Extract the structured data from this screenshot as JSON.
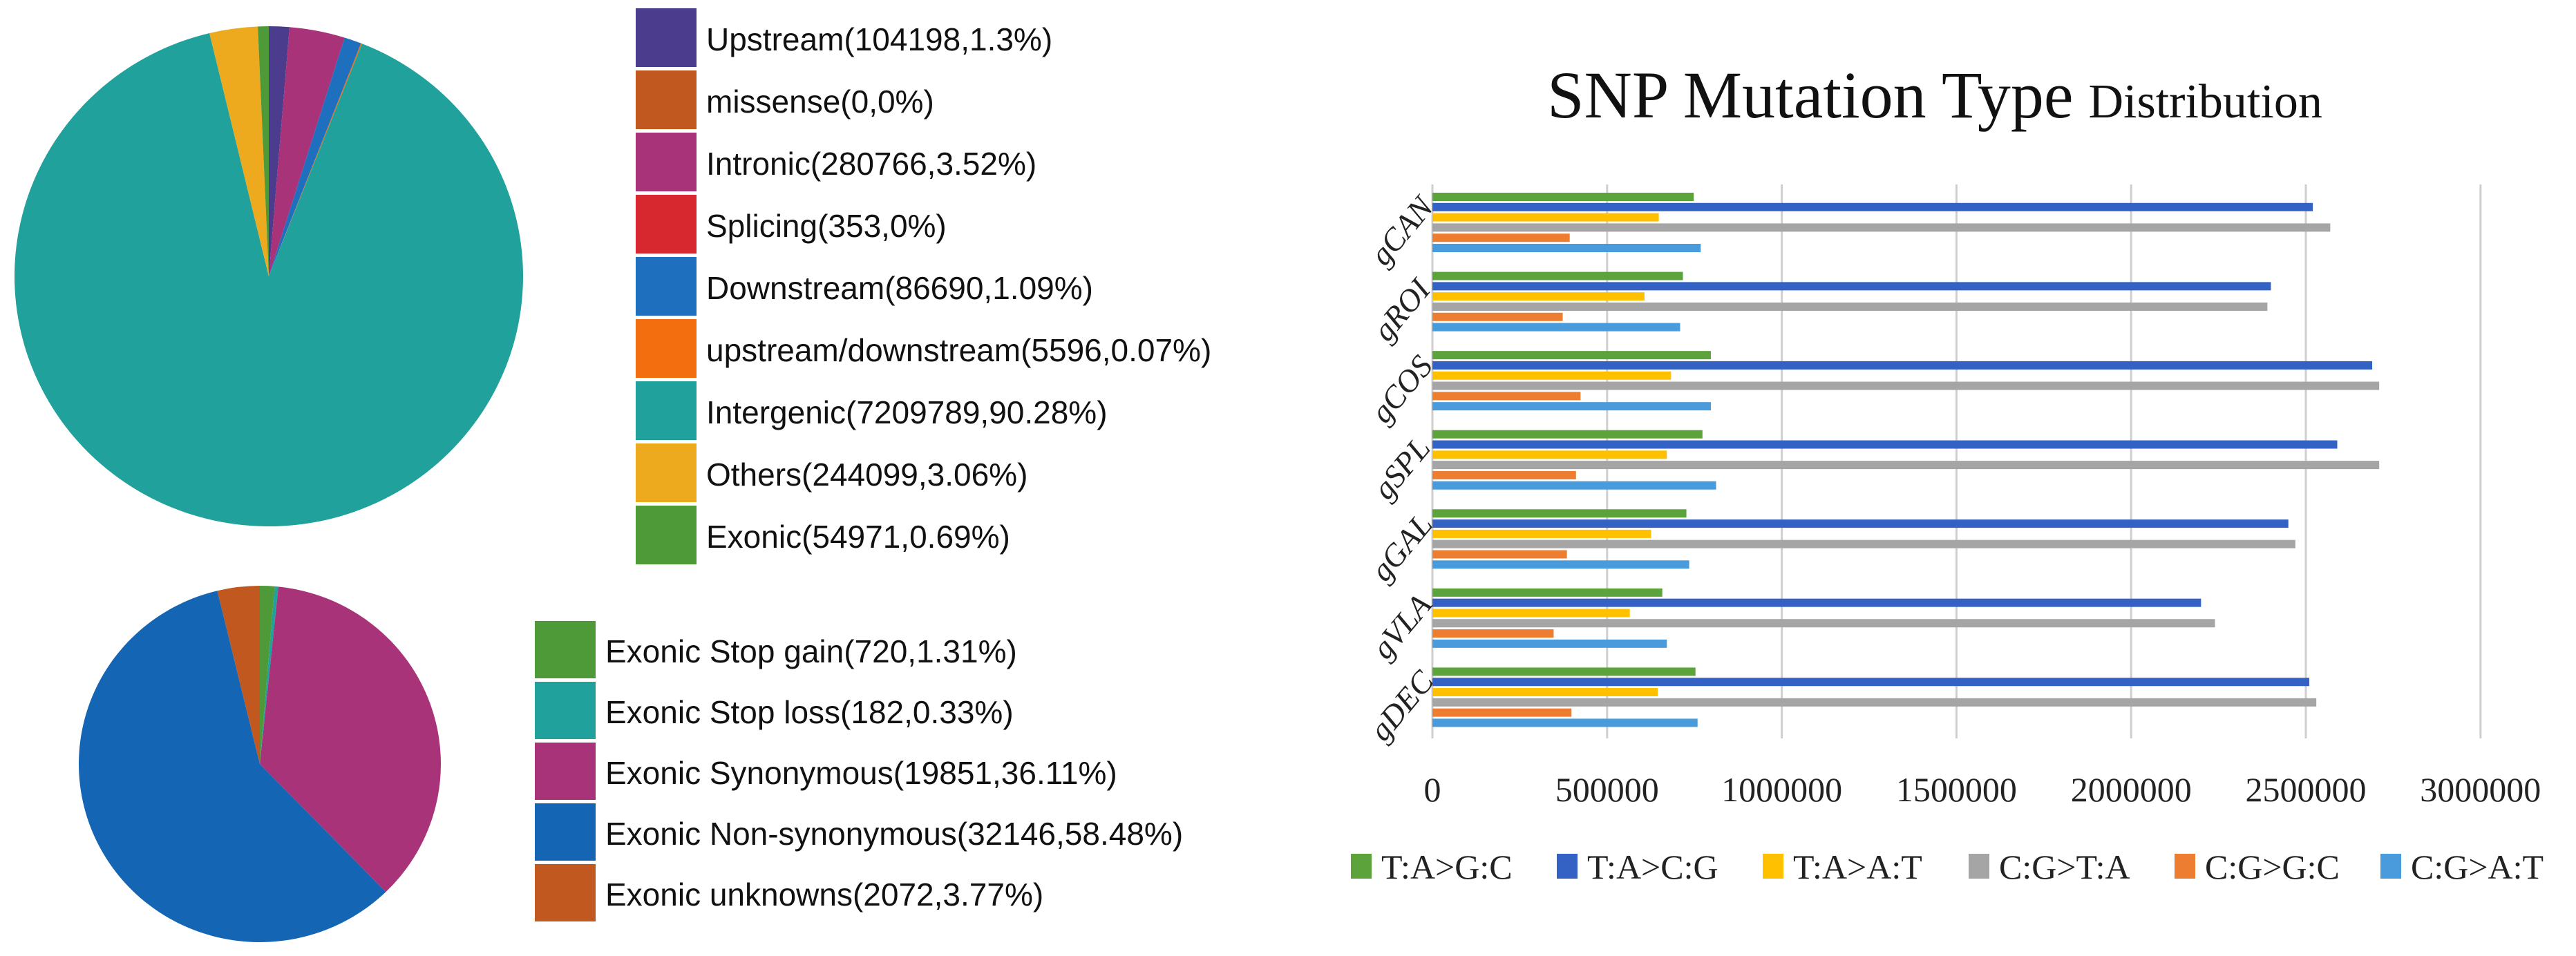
{
  "chart_data": [
    {
      "type": "pie",
      "title": "",
      "legend_position": "right",
      "slices": [
        {
          "label": "Upstream(104198,1.3%)",
          "name": "Upstream",
          "count": 104198,
          "percent": 1.3,
          "color": "#4B3C8E"
        },
        {
          "label": "missense(0,0%)",
          "name": "missense",
          "count": 0,
          "percent": 0,
          "color": "#C0581F"
        },
        {
          "label": "Intronic(280766,3.52%)",
          "name": "Intronic",
          "count": 280766,
          "percent": 3.52,
          "color": "#A83379"
        },
        {
          "label": "Splicing(353,0%)",
          "name": "Splicing",
          "count": 353,
          "percent": 0,
          "color": "#D7282F"
        },
        {
          "label": "Downstream(86690,1.09%)",
          "name": "Downstream",
          "count": 86690,
          "percent": 1.09,
          "color": "#1F6FBF"
        },
        {
          "label": "upstream/downstream(5596,0.07%)",
          "name": "upstream/downstream",
          "count": 5596,
          "percent": 0.07,
          "color": "#F26E0F"
        },
        {
          "label": "Intergenic(7209789,90.28%)",
          "name": "Intergenic",
          "count": 7209789,
          "percent": 90.28,
          "color": "#20A19B"
        },
        {
          "label": "Others(244099,3.06%)",
          "name": "Others",
          "count": 244099,
          "percent": 3.06,
          "color": "#EDAA1F"
        },
        {
          "label": "Exonic(54971,0.69%)",
          "name": "Exonic",
          "count": 54971,
          "percent": 0.69,
          "color": "#4E9A39"
        }
      ]
    },
    {
      "type": "pie",
      "title": "",
      "legend_position": "right",
      "slices": [
        {
          "label": "Exonic Stop gain(720,1.31%)",
          "name": "Exonic Stop gain",
          "count": 720,
          "percent": 1.31,
          "color": "#4E9A39"
        },
        {
          "label": "Exonic Stop loss(182,0.33%)",
          "name": "Exonic Stop loss",
          "count": 182,
          "percent": 0.33,
          "color": "#20A19B"
        },
        {
          "label": "Exonic Synonymous(19851,36.11%)",
          "name": "Exonic Synonymous",
          "count": 19851,
          "percent": 36.11,
          "color": "#A83379"
        },
        {
          "label": "Exonic Non-synonymous(32146,58.48%)",
          "name": "Exonic Non-synonymous",
          "count": 32146,
          "percent": 58.48,
          "color": "#1565B5"
        },
        {
          "label": "Exonic unknowns(2072,3.77%)",
          "name": "Exonic unknowns",
          "count": 2072,
          "percent": 3.77,
          "color": "#C0581F"
        }
      ]
    },
    {
      "type": "bar",
      "orientation": "horizontal",
      "title_main": "SNP Mutation Type",
      "title_sub": "Distribution",
      "xlabel": "",
      "ylabel": "",
      "xlim": [
        0,
        3000000
      ],
      "xticks": [
        "0",
        "500000",
        "1000000",
        "1500000",
        "2000000",
        "2500000",
        "3000000"
      ],
      "grid": true,
      "legend_position": "bottom",
      "categories": [
        "gCAN",
        "gROI",
        "gCOS",
        "gSPL",
        "gGAL",
        "gVLA",
        "gDEC"
      ],
      "series": [
        {
          "name": "T:A>G:C",
          "color": "#5BA33A",
          "values": [
            748000,
            717000,
            797000,
            773000,
            727000,
            658000,
            753000
          ]
        },
        {
          "name": "T:A>C:G",
          "color": "#3461C4",
          "values": [
            2520000,
            2400000,
            2690000,
            2590000,
            2450000,
            2200000,
            2510000
          ]
        },
        {
          "name": "T:A>A:T",
          "color": "#FFC000",
          "values": [
            648000,
            607000,
            683000,
            671000,
            626000,
            565000,
            645000
          ]
        },
        {
          "name": "C:G>T:A",
          "color": "#A5A5A5",
          "values": [
            2570000,
            2390000,
            2710000,
            2710000,
            2470000,
            2240000,
            2530000
          ]
        },
        {
          "name": "C:G>G:C",
          "color": "#ED7D31",
          "values": [
            393000,
            373000,
            424000,
            411000,
            385000,
            347000,
            398000
          ]
        },
        {
          "name": "C:G>A:T",
          "color": "#4A9BDC",
          "values": [
            768000,
            709000,
            797000,
            812000,
            735000,
            671000,
            759000
          ]
        }
      ]
    }
  ]
}
